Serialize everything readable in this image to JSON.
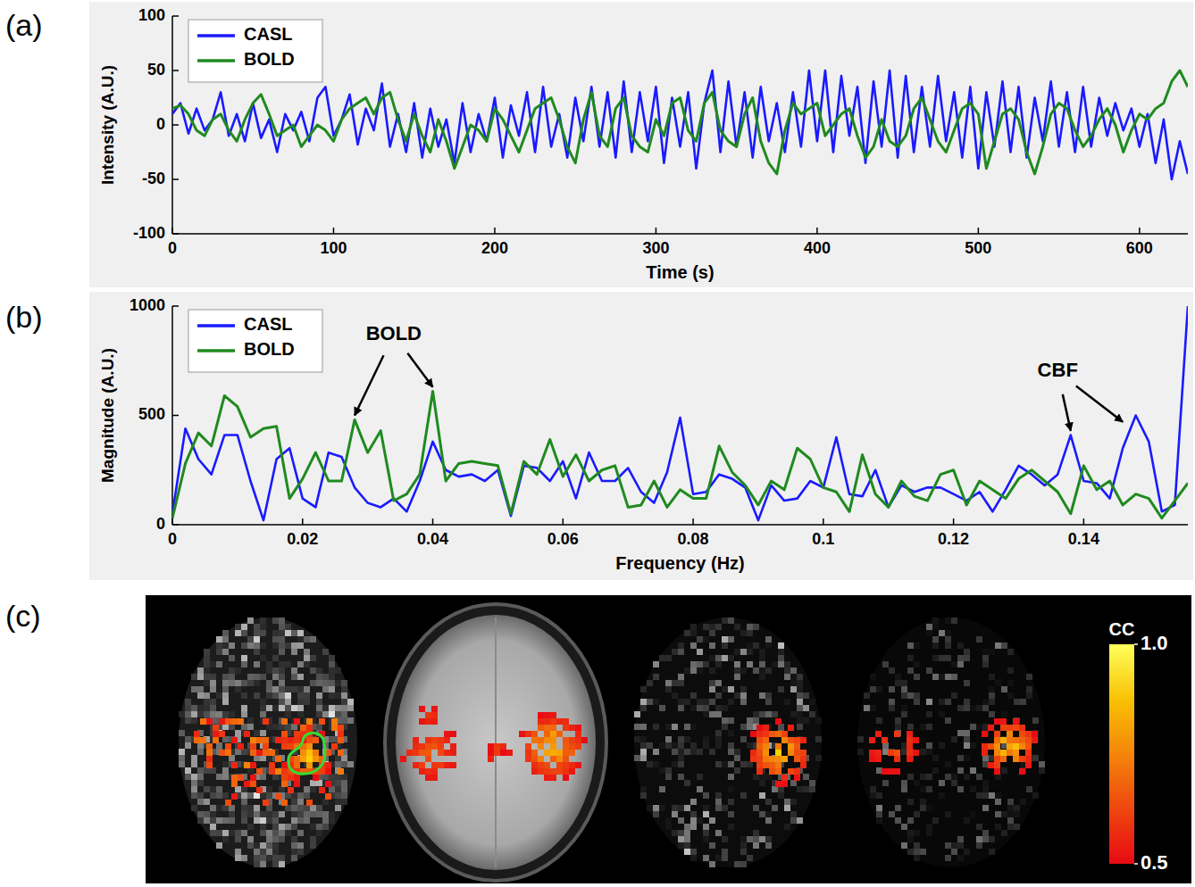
{
  "chart_data": [
    {
      "type": "line",
      "label": "(a)",
      "x_label": "Time (s)",
      "y_label": "Intensity (A.U.)",
      "x": [
        0,
        5,
        10,
        15,
        20,
        25,
        30,
        35,
        40,
        45,
        50,
        55,
        60,
        65,
        70,
        75,
        80,
        85,
        90,
        95,
        100,
        105,
        110,
        115,
        120,
        125,
        130,
        135,
        140,
        145,
        150,
        155,
        160,
        165,
        170,
        175,
        180,
        185,
        190,
        195,
        200,
        205,
        210,
        215,
        220,
        225,
        230,
        235,
        240,
        245,
        250,
        255,
        260,
        265,
        270,
        275,
        280,
        285,
        290,
        295,
        300,
        305,
        310,
        315,
        320,
        325,
        330,
        335,
        340,
        345,
        350,
        355,
        360,
        365,
        370,
        375,
        380,
        385,
        390,
        395,
        400,
        405,
        410,
        415,
        420,
        425,
        430,
        435,
        440,
        445,
        450,
        455,
        460,
        465,
        470,
        475,
        480,
        485,
        490,
        495,
        500,
        505,
        510,
        515,
        520,
        525,
        530,
        535,
        540,
        545,
        550,
        555,
        560,
        565,
        570,
        575,
        580,
        585,
        590,
        595,
        600,
        605,
        610,
        615,
        620,
        625,
        630
      ],
      "xlim": [
        0,
        630
      ],
      "xticks": [
        0,
        100,
        200,
        300,
        400,
        500,
        600
      ],
      "ylim": [
        -100,
        100
      ],
      "yticks": [
        -100,
        -50,
        0,
        50,
        100
      ],
      "legend": "upper left",
      "series": [
        {
          "name": "CASL",
          "color": "#1a1aff",
          "values": [
            10,
            20,
            -8,
            15,
            -5,
            5,
            30,
            -10,
            10,
            -15,
            20,
            -12,
            5,
            -25,
            10,
            -5,
            12,
            -15,
            25,
            35,
            -10,
            5,
            28,
            -18,
            15,
            -5,
            38,
            -20,
            10,
            -25,
            20,
            -30,
            15,
            -20,
            5,
            -35,
            20,
            -25,
            10,
            -15,
            25,
            -30,
            18,
            -10,
            30,
            -25,
            35,
            -20,
            10,
            -30,
            25,
            -15,
            35,
            -20,
            30,
            -30,
            40,
            -25,
            30,
            -15,
            35,
            -35,
            25,
            -20,
            30,
            -40,
            20,
            50,
            -25,
            40,
            -20,
            30,
            -30,
            35,
            -15,
            20,
            -25,
            30,
            -20,
            50,
            -15,
            50,
            -25,
            45,
            -10,
            35,
            -35,
            40,
            -20,
            50,
            -30,
            45,
            -25,
            35,
            -20,
            45,
            -15,
            30,
            -30,
            35,
            -40,
            30,
            -20,
            40,
            -25,
            35,
            -30,
            25,
            -15,
            40,
            -20,
            30,
            -25,
            35,
            -20,
            25,
            -10,
            20,
            -5,
            15,
            -20,
            10,
            -35,
            5,
            -50,
            -15,
            -45
          ]
        },
        {
          "name": "BOLD",
          "color": "#1f8a1f",
          "values": [
            15,
            18,
            10,
            -5,
            -10,
            5,
            10,
            -5,
            -15,
            5,
            20,
            28,
            10,
            -10,
            -5,
            0,
            -20,
            -10,
            0,
            -5,
            -15,
            5,
            15,
            20,
            25,
            10,
            25,
            30,
            5,
            -15,
            10,
            -10,
            -25,
            5,
            -15,
            -40,
            -20,
            0,
            -5,
            -15,
            15,
            5,
            -10,
            -25,
            -5,
            15,
            20,
            25,
            5,
            -20,
            -35,
            5,
            30,
            -10,
            -20,
            15,
            25,
            -10,
            -20,
            -25,
            5,
            -10,
            20,
            25,
            -5,
            -15,
            20,
            30,
            -5,
            -15,
            -20,
            10,
            25,
            -15,
            -35,
            -45,
            -5,
            20,
            10,
            15,
            20,
            -10,
            0,
            10,
            15,
            -10,
            -30,
            -20,
            5,
            -15,
            -20,
            -10,
            15,
            25,
            5,
            -15,
            -25,
            -5,
            15,
            20,
            10,
            -40,
            -15,
            10,
            15,
            5,
            -25,
            -45,
            -20,
            10,
            20,
            15,
            -5,
            -20,
            -10,
            5,
            15,
            0,
            -25,
            -5,
            10,
            5,
            15,
            20,
            40,
            50,
            35
          ]
        }
      ]
    },
    {
      "type": "line",
      "label": "(b)",
      "x_label": "Frequency (Hz)",
      "y_label": "Magnitude (A.U.)",
      "x": [
        0,
        0.002,
        0.004,
        0.006,
        0.008,
        0.01,
        0.012,
        0.014,
        0.016,
        0.018,
        0.02,
        0.022,
        0.024,
        0.026,
        0.028,
        0.03,
        0.032,
        0.034,
        0.036,
        0.038,
        0.04,
        0.042,
        0.044,
        0.046,
        0.048,
        0.05,
        0.052,
        0.054,
        0.056,
        0.058,
        0.06,
        0.062,
        0.064,
        0.066,
        0.068,
        0.07,
        0.072,
        0.074,
        0.076,
        0.078,
        0.08,
        0.082,
        0.084,
        0.086,
        0.088,
        0.09,
        0.092,
        0.094,
        0.096,
        0.098,
        0.1,
        0.102,
        0.104,
        0.106,
        0.108,
        0.11,
        0.112,
        0.114,
        0.116,
        0.118,
        0.12,
        0.122,
        0.124,
        0.126,
        0.128,
        0.13,
        0.132,
        0.134,
        0.136,
        0.138,
        0.14,
        0.142,
        0.144,
        0.146,
        0.148,
        0.15,
        0.152,
        0.154,
        0.156
      ],
      "xlim": [
        0,
        0.156
      ],
      "xticks": [
        0,
        0.02,
        0.04,
        0.06,
        0.08,
        0.1,
        0.12,
        0.14
      ],
      "ylim": [
        0,
        1000
      ],
      "yticks": [
        0,
        500,
        1000
      ],
      "legend": "upper left",
      "series": [
        {
          "name": "CASL",
          "color": "#1a1aff",
          "values": [
            50,
            440,
            300,
            230,
            410,
            410,
            200,
            20,
            300,
            350,
            120,
            80,
            330,
            310,
            170,
            100,
            80,
            120,
            60,
            200,
            380,
            250,
            220,
            230,
            200,
            250,
            40,
            270,
            260,
            200,
            290,
            120,
            330,
            200,
            200,
            260,
            150,
            100,
            240,
            490,
            140,
            150,
            230,
            210,
            170,
            20,
            180,
            110,
            120,
            200,
            170,
            400,
            140,
            130,
            250,
            80,
            180,
            150,
            170,
            170,
            140,
            110,
            150,
            60,
            160,
            270,
            230,
            180,
            230,
            410,
            200,
            190,
            120,
            350,
            500,
            380,
            60,
            90,
            1000
          ]
        },
        {
          "name": "BOLD",
          "color": "#1f8a1f",
          "values": [
            30,
            280,
            420,
            360,
            590,
            540,
            400,
            440,
            450,
            120,
            210,
            330,
            200,
            200,
            480,
            330,
            430,
            110,
            140,
            230,
            610,
            200,
            280,
            290,
            280,
            270,
            50,
            290,
            230,
            390,
            220,
            320,
            200,
            250,
            270,
            80,
            90,
            200,
            80,
            160,
            120,
            120,
            360,
            240,
            180,
            90,
            200,
            160,
            350,
            300,
            170,
            150,
            60,
            320,
            140,
            80,
            200,
            130,
            110,
            230,
            250,
            90,
            200,
            160,
            120,
            210,
            250,
            200,
            150,
            50,
            270,
            160,
            200,
            90,
            140,
            120,
            30,
            110,
            190
          ]
        }
      ],
      "annotations": [
        {
          "text": "BOLD",
          "x": 0.034,
          "y": 870,
          "targets": [
            {
              "x": 0.028,
              "y": 500
            },
            {
              "x": 0.04,
              "y": 630
            }
          ]
        },
        {
          "text": "CBF",
          "x": 0.136,
          "y": 700,
          "targets": [
            {
              "x": 0.138,
              "y": 430
            },
            {
              "x": 0.146,
              "y": 470
            }
          ]
        }
      ]
    },
    {
      "type": "image",
      "label": "(c)",
      "colorbar": {
        "label": "CC",
        "range": [
          0.5,
          1
        ],
        "ticks": [
          {
            "value": 1,
            "label": "1.0"
          },
          0.5
        ]
      }
    }
  ]
}
